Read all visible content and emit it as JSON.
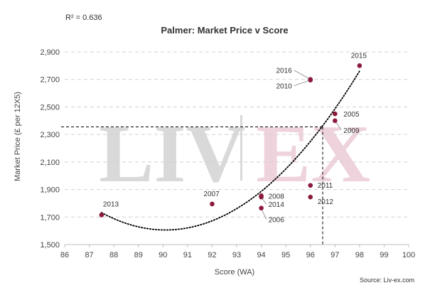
{
  "chart_data": {
    "type": "scatter",
    "title": "Palmer: Market Price v Score",
    "r_squared_label": "R² = 0.636",
    "xlabel": "Score (WA)",
    "ylabel": "Market Price (£ per 12X5)",
    "xlim": [
      86,
      100
    ],
    "ylim": [
      1500,
      2900
    ],
    "xticks": [
      86,
      87,
      88,
      89,
      90,
      91,
      92,
      93,
      94,
      95,
      96,
      97,
      98,
      99,
      100
    ],
    "yticks": [
      1500,
      1700,
      1900,
      2100,
      2300,
      2500,
      2700,
      2900
    ],
    "ytick_labels": [
      "1,500",
      "1,700",
      "1,900",
      "2,100",
      "2,300",
      "2,500",
      "2,700",
      "2,900"
    ],
    "grid": "horizontal-dashed",
    "point_color": "#8b1a3b",
    "points": [
      {
        "label": "2013",
        "x": 87.5,
        "y": 1715
      },
      {
        "label": "2007",
        "x": 92,
        "y": 1795
      },
      {
        "label": "2008",
        "x": 94,
        "y": 1855
      },
      {
        "label": "2014",
        "x": 94,
        "y": 1845
      },
      {
        "label": "2006",
        "x": 94,
        "y": 1765
      },
      {
        "label": "2011",
        "x": 96,
        "y": 1930
      },
      {
        "label": "2012",
        "x": 96,
        "y": 1845
      },
      {
        "label": "2016",
        "x": 96,
        "y": 2700
      },
      {
        "label": "2010",
        "x": 96,
        "y": 2695
      },
      {
        "label": "2005",
        "x": 97,
        "y": 2450
      },
      {
        "label": "2009",
        "x": 97,
        "y": 2400
      },
      {
        "label": "2015",
        "x": 98,
        "y": 2800
      }
    ],
    "trendline": {
      "type": "polynomial",
      "order": 2,
      "style": "dotted",
      "x_range": [
        87.5,
        98
      ]
    },
    "reference_lines": {
      "x": 96.5,
      "y": 2355
    },
    "watermark": "LIV|EX",
    "source": "Source: Liv-ex.com"
  }
}
